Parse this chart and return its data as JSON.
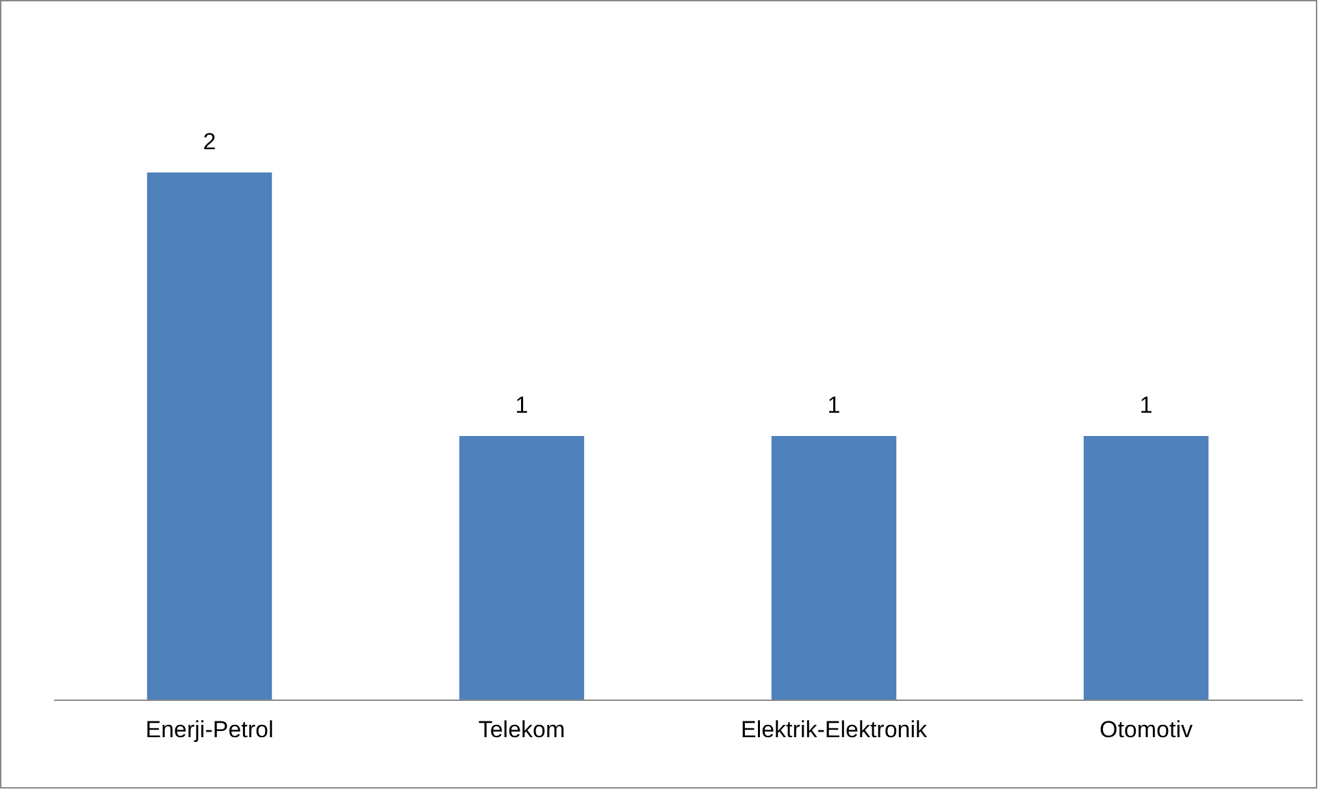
{
  "chart_data": {
    "type": "bar",
    "categories": [
      "Enerji-Petrol",
      "Telekom",
      "Elektrik-Elektronik",
      "Otomotiv"
    ],
    "values": [
      2,
      1,
      1,
      1
    ],
    "color": "#4f81bd",
    "data_labels": true,
    "tick_labels": "x"
  }
}
